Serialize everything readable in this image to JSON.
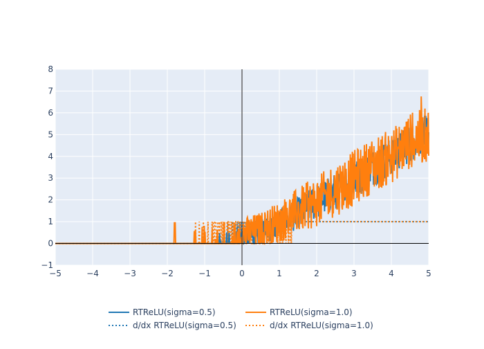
{
  "chart_data": {
    "type": "line",
    "xlim": [
      -5,
      5
    ],
    "ylim": [
      -1,
      8
    ],
    "x_ticks": [
      -5,
      -4,
      -3,
      -2,
      -1,
      0,
      1,
      2,
      3,
      4,
      5
    ],
    "y_ticks": [
      -1,
      0,
      1,
      2,
      3,
      4,
      5,
      6,
      7,
      8
    ],
    "x_tick_labels": [
      "−5",
      "−4",
      "−3",
      "−2",
      "−1",
      "0",
      "1",
      "2",
      "3",
      "4",
      "5"
    ],
    "y_tick_labels": [
      "−1",
      "0",
      "1",
      "2",
      "3",
      "4",
      "5",
      "6",
      "7",
      "8"
    ],
    "grid": true,
    "plot_bgcolor": "#e5ecf6",
    "zero_line_x": 0,
    "zero_line_y": 0,
    "legend_placement": "bottom-center",
    "noise_model": "noisy ReLU; values estimated from the figure",
    "series": [
      {
        "name": "RTReLU(sigma=0.5)",
        "color": "#1f77b4",
        "dash": "solid",
        "x": [
          -5,
          -4,
          -3,
          -2,
          -1,
          0,
          0.5,
          1,
          1.5,
          2,
          2.5,
          3,
          3.5,
          4,
          4.5,
          5
        ],
        "y": [
          0,
          0,
          0,
          0,
          0,
          0.1,
          0.5,
          0.9,
          1.4,
          1.9,
          2.4,
          2.9,
          3.5,
          4.0,
          4.6,
          5.1
        ]
      },
      {
        "name": "RTReLU(sigma=1.0)",
        "color": "#ff7f0e",
        "dash": "solid",
        "x": [
          -5,
          -4,
          -3,
          -2,
          -1.8,
          -1,
          0,
          0.5,
          1,
          1.5,
          2,
          2.5,
          3,
          3.5,
          4,
          4.5,
          5
        ],
        "y": [
          0,
          0,
          0,
          0,
          0.95,
          0.3,
          0.4,
          0.6,
          1.0,
          1.5,
          1.9,
          2.5,
          3.0,
          3.6,
          4.0,
          4.7,
          5.0
        ]
      },
      {
        "name": "d/dx RTReLU(sigma=0.5)",
        "color": "#1f77b4",
        "dash": "dot",
        "x": [
          -5,
          -0.6,
          -0.6,
          0.6,
          0.6,
          5
        ],
        "y": [
          0,
          0,
          1,
          1,
          1,
          1
        ]
      },
      {
        "name": "d/dx RTReLU(sigma=1.0)",
        "color": "#ff7f0e",
        "dash": "dot",
        "x": [
          -5,
          -1.3,
          -1.3,
          1.9,
          1.9,
          5
        ],
        "y": [
          0,
          0,
          1,
          1,
          1,
          1
        ]
      }
    ]
  },
  "legend": {
    "items": [
      {
        "label": "RTReLU(sigma=0.5)",
        "color": "#1f77b4",
        "dash": "solid"
      },
      {
        "label": "d/dx RTReLU(sigma=0.5)",
        "color": "#1f77b4",
        "dash": "dot"
      },
      {
        "label": "RTReLU(sigma=1.0)",
        "color": "#ff7f0e",
        "dash": "solid"
      },
      {
        "label": "d/dx RTReLU(sigma=1.0)",
        "color": "#ff7f0e",
        "dash": "dot"
      }
    ]
  }
}
